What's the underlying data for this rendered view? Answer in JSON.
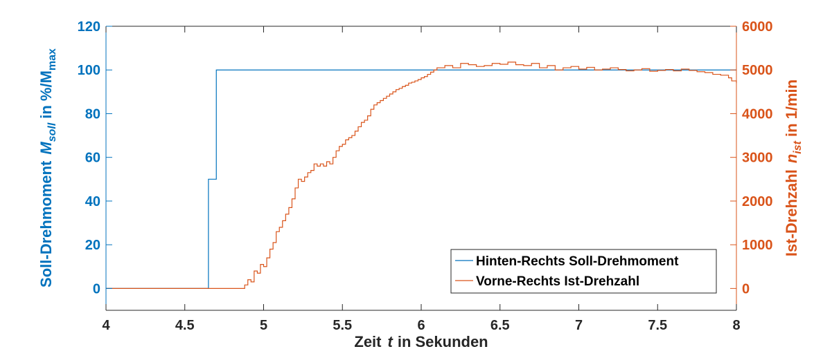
{
  "chart_data": {
    "type": "line",
    "x_axis": {
      "label_prefix": "Zeit",
      "label_var": "t",
      "label_suffix": "in Sekunden",
      "lim": [
        4,
        8
      ],
      "ticks": [
        "4",
        "4.5",
        "5",
        "5.5",
        "6",
        "6.5",
        "7",
        "7.5",
        "8"
      ]
    },
    "y_left": {
      "label_prefix": "Soll-Drehmoment",
      "label_var": "M",
      "label_sub": "soll",
      "label_mid": "in %/M",
      "label_sub2": "max",
      "lim": [
        -10,
        120
      ],
      "ticks": [
        "0",
        "20",
        "40",
        "60",
        "80",
        "100",
        "120"
      ],
      "color": "#0072BD"
    },
    "y_right": {
      "label_prefix": "Ist-Drehzahl",
      "label_var": "n",
      "label_sub": "ist",
      "label_suffix": "in 1/min",
      "lim": [
        -500,
        6000
      ],
      "ticks": [
        "0",
        "1000",
        "2000",
        "3000",
        "4000",
        "5000",
        "6000"
      ],
      "color": "#D95319"
    },
    "legend_position": "bottom-right",
    "series": [
      {
        "name": "Hinten-Rechts Soll-Drehmoment",
        "axis": "left",
        "color": "#0072BD",
        "step": true,
        "x": [
          4.0,
          4.65,
          4.65,
          4.7,
          4.7,
          8.0
        ],
        "y": [
          0,
          0,
          50,
          50,
          100,
          100
        ]
      },
      {
        "name": "Vorne-Rechts Ist-Drehzahl",
        "axis": "right",
        "color": "#D95319",
        "step": true,
        "x": [
          4.0,
          4.86,
          4.88,
          4.9,
          4.92,
          4.94,
          4.96,
          4.98,
          5.0,
          5.02,
          5.04,
          5.06,
          5.08,
          5.1,
          5.12,
          5.14,
          5.16,
          5.18,
          5.2,
          5.22,
          5.24,
          5.26,
          5.28,
          5.3,
          5.32,
          5.34,
          5.36,
          5.38,
          5.4,
          5.42,
          5.44,
          5.46,
          5.48,
          5.5,
          5.52,
          5.54,
          5.56,
          5.58,
          5.6,
          5.62,
          5.64,
          5.66,
          5.68,
          5.7,
          5.72,
          5.74,
          5.76,
          5.78,
          5.8,
          5.82,
          5.84,
          5.86,
          5.88,
          5.9,
          5.92,
          5.94,
          5.96,
          5.98,
          6.0,
          6.02,
          6.04,
          6.06,
          6.08,
          6.1,
          6.15,
          6.2,
          6.25,
          6.3,
          6.35,
          6.4,
          6.45,
          6.5,
          6.55,
          6.6,
          6.65,
          6.7,
          6.75,
          6.8,
          6.85,
          6.9,
          6.95,
          7.0,
          7.05,
          7.1,
          7.15,
          7.2,
          7.25,
          7.3,
          7.35,
          7.4,
          7.45,
          7.5,
          7.55,
          7.6,
          7.65,
          7.7,
          7.75,
          7.8,
          7.85,
          7.9,
          7.95,
          7.97,
          8.0
        ],
        "y": [
          0,
          0,
          80,
          200,
          150,
          400,
          350,
          550,
          500,
          700,
          900,
          1050,
          1300,
          1400,
          1550,
          1700,
          1850,
          2050,
          2300,
          2500,
          2450,
          2550,
          2650,
          2700,
          2850,
          2800,
          2850,
          2800,
          2900,
          2850,
          3000,
          3150,
          3250,
          3300,
          3400,
          3450,
          3500,
          3600,
          3700,
          3800,
          3850,
          3950,
          4100,
          4200,
          4250,
          4300,
          4350,
          4400,
          4450,
          4500,
          4550,
          4580,
          4620,
          4650,
          4700,
          4720,
          4750,
          4780,
          4820,
          4850,
          4900,
          4950,
          5000,
          5050,
          5100,
          5050,
          5150,
          5120,
          5080,
          5100,
          5150,
          5130,
          5180,
          5120,
          5100,
          5150,
          5050,
          5100,
          5000,
          5050,
          5080,
          5020,
          5060,
          5000,
          5020,
          5050,
          5010,
          4980,
          5000,
          5030,
          4970,
          4990,
          5010,
          4980,
          5020,
          4990,
          4960,
          4940,
          4900,
          4880,
          4820,
          4750,
          4700
        ]
      }
    ]
  }
}
